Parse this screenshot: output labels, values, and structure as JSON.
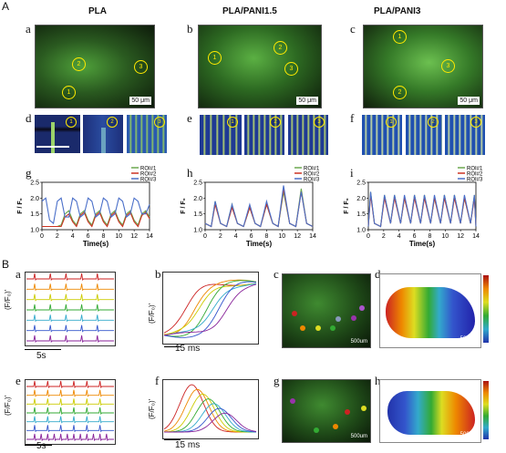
{
  "panel_A": {
    "label": "A",
    "conditions": [
      "PLA",
      "PLA/PANI1.5",
      "PLA/PANI3"
    ],
    "image_labels": [
      "a",
      "b",
      "c"
    ],
    "kymo_labels": [
      "d",
      "e",
      "f"
    ],
    "trace_labels": [
      "g",
      "h",
      "i"
    ],
    "scale_bar": "50 μm",
    "roi_marks": [
      "1",
      "2",
      "3"
    ],
    "legend": [
      "ROI#1",
      "ROI#2",
      "ROI#3"
    ],
    "ylabel": "F / F₀",
    "xlabel": "Time(s)"
  },
  "panel_B": {
    "label": "B",
    "labels": [
      "a",
      "b",
      "c",
      "d",
      "e",
      "f",
      "g",
      "h"
    ],
    "ylabel": "(F/F₀)'",
    "scale_5s": "5s",
    "scale_15ms": "15 ms",
    "scale_500": "500um"
  },
  "colors": {
    "roi1": "#6aa84f",
    "roi2": "#cc3322",
    "roi3": "#4a6fc9",
    "rainbow": [
      "#cc2222",
      "#ee8800",
      "#cccc00",
      "#33aa33",
      "#33aacc",
      "#3355cc",
      "#882299"
    ]
  },
  "chart_data": [
    {
      "type": "line",
      "id": "A-g",
      "xlabel": "Time(s)",
      "ylabel": "F / F₀",
      "xlim": [
        0,
        14
      ],
      "ylim": [
        1.0,
        2.5
      ],
      "xticks": [
        0,
        2,
        4,
        6,
        8,
        10,
        12,
        14
      ],
      "yticks": [
        1.0,
        1.5,
        2.0,
        2.5
      ],
      "series": [
        {
          "name": "ROI#1",
          "x": [
            0,
            0.5,
            1,
            1.5,
            2,
            2.5,
            3,
            3.5,
            4,
            4.5,
            5,
            5.5,
            6,
            6.5,
            7,
            7.5,
            8,
            8.5,
            9,
            9.5,
            10,
            10.5,
            11,
            11.5,
            12,
            12.5,
            13,
            13.5,
            14
          ],
          "y": [
            1.1,
            1.1,
            1.1,
            1.1,
            1.1,
            1.15,
            1.5,
            1.6,
            1.3,
            1.15,
            1.5,
            1.6,
            1.3,
            1.15,
            1.5,
            1.6,
            1.3,
            1.15,
            1.5,
            1.6,
            1.3,
            1.15,
            1.5,
            1.6,
            1.3,
            1.15,
            1.5,
            1.6,
            1.4
          ]
        },
        {
          "name": "ROI#2",
          "x": [
            0,
            0.5,
            1,
            1.5,
            2,
            2.5,
            3,
            3.5,
            4,
            4.5,
            5,
            5.5,
            6,
            6.5,
            7,
            7.5,
            8,
            8.5,
            9,
            9.5,
            10,
            10.5,
            11,
            11.5,
            12,
            12.5,
            13,
            13.5,
            14
          ],
          "y": [
            1.1,
            1.1,
            1.1,
            1.1,
            1.1,
            1.1,
            1.4,
            1.5,
            1.25,
            1.1,
            1.45,
            1.55,
            1.25,
            1.1,
            1.45,
            1.55,
            1.25,
            1.1,
            1.45,
            1.55,
            1.25,
            1.1,
            1.45,
            1.55,
            1.25,
            1.1,
            1.45,
            1.55,
            1.35
          ]
        },
        {
          "name": "ROI#3",
          "x": [
            0,
            0.5,
            1,
            1.5,
            2,
            2.5,
            3,
            3.5,
            4,
            4.5,
            5,
            5.5,
            6,
            6.5,
            7,
            7.5,
            8,
            8.5,
            9,
            9.5,
            10,
            10.5,
            11,
            11.5,
            12,
            12.5,
            13,
            13.5,
            14
          ],
          "y": [
            1.9,
            2.0,
            1.3,
            1.2,
            1.9,
            2.0,
            1.4,
            1.4,
            2.0,
            1.9,
            1.4,
            1.5,
            2.0,
            1.9,
            1.4,
            1.5,
            2.0,
            1.9,
            1.4,
            1.5,
            2.0,
            1.9,
            1.4,
            1.5,
            2.0,
            1.9,
            1.5,
            1.5,
            1.8
          ]
        }
      ]
    },
    {
      "type": "line",
      "id": "A-h",
      "xlabel": "Time(s)",
      "ylabel": "F / F₀",
      "xlim": [
        0,
        14
      ],
      "ylim": [
        1.0,
        2.5
      ],
      "xticks": [
        0,
        2,
        4,
        6,
        8,
        10,
        12,
        14
      ],
      "yticks": [
        1.0,
        1.5,
        2.0,
        2.5
      ],
      "series": [
        {
          "name": "ROI#1",
          "x": [
            0,
            0.8,
            1.3,
            2,
            2.8,
            3.5,
            4.2,
            5,
            5.8,
            6.5,
            7.2,
            8,
            8.8,
            9.5,
            10.2,
            11,
            11.8,
            12.5,
            13.2,
            14
          ],
          "y": [
            1.2,
            1.1,
            1.9,
            1.2,
            1.1,
            1.8,
            1.2,
            1.1,
            1.7,
            1.2,
            1.1,
            1.8,
            1.2,
            1.1,
            2.2,
            1.2,
            1.1,
            2.3,
            1.2,
            1.1
          ]
        },
        {
          "name": "ROI#2",
          "x": [
            0,
            0.8,
            1.3,
            2,
            2.8,
            3.5,
            4.2,
            5,
            5.8,
            6.5,
            7.2,
            8,
            8.8,
            9.5,
            10.2,
            11,
            11.8,
            12.5,
            13.2,
            14
          ],
          "y": [
            1.2,
            1.1,
            1.8,
            1.2,
            1.1,
            1.7,
            1.2,
            1.1,
            1.7,
            1.2,
            1.1,
            1.8,
            1.2,
            1.1,
            2.3,
            1.2,
            1.1,
            2.2,
            1.2,
            1.1
          ]
        },
        {
          "name": "ROI#3",
          "x": [
            0,
            0.8,
            1.3,
            2,
            2.8,
            3.5,
            4.2,
            5,
            5.8,
            6.5,
            7.2,
            8,
            8.8,
            9.5,
            10.2,
            11,
            11.8,
            12.5,
            13.2,
            14
          ],
          "y": [
            1.2,
            1.1,
            1.9,
            1.2,
            1.1,
            1.8,
            1.2,
            1.1,
            1.8,
            1.2,
            1.1,
            1.9,
            1.2,
            1.1,
            2.4,
            1.2,
            1.1,
            2.2,
            1.2,
            1.1
          ]
        }
      ]
    },
    {
      "type": "line",
      "id": "A-i",
      "xlabel": "Time(s)",
      "ylabel": "F / F₀",
      "xlim": [
        0,
        14
      ],
      "ylim": [
        1.0,
        2.5
      ],
      "xticks": [
        0,
        2,
        4,
        6,
        8,
        10,
        12,
        14
      ],
      "yticks": [
        1.0,
        1.5,
        2.0,
        2.5
      ],
      "series": [
        {
          "name": "ROI#1",
          "x": [
            0,
            0.3,
            0.8,
            1.6,
            2.1,
            2.9,
            3.4,
            4.2,
            4.7,
            5.5,
            6.0,
            6.8,
            7.3,
            8.1,
            8.6,
            9.4,
            9.9,
            10.7,
            11.2,
            12.0,
            12.5,
            13.3,
            13.8,
            14
          ],
          "y": [
            1.1,
            2.2,
            1.2,
            1.1,
            2.1,
            1.2,
            2.1,
            1.2,
            2.0,
            1.2,
            2.1,
            1.2,
            2.1,
            1.2,
            2.0,
            1.2,
            2.1,
            1.2,
            2.1,
            1.2,
            2.0,
            1.2,
            2.1,
            1.1
          ]
        },
        {
          "name": "ROI#2",
          "x": [
            0,
            0.3,
            0.8,
            1.6,
            2.1,
            2.9,
            3.4,
            4.2,
            4.7,
            5.5,
            6.0,
            6.8,
            7.3,
            8.1,
            8.6,
            9.4,
            9.9,
            10.7,
            11.2,
            12.0,
            12.5,
            13.3,
            13.8,
            14
          ],
          "y": [
            1.1,
            2.1,
            1.2,
            1.1,
            2.0,
            1.2,
            2.0,
            1.2,
            2.0,
            1.2,
            2.0,
            1.2,
            2.0,
            1.2,
            2.0,
            1.2,
            2.0,
            1.2,
            2.0,
            1.2,
            2.0,
            1.2,
            2.0,
            1.1
          ]
        },
        {
          "name": "ROI#3",
          "x": [
            0,
            0.3,
            0.8,
            1.6,
            2.1,
            2.9,
            3.4,
            4.2,
            4.7,
            5.5,
            6.0,
            6.8,
            7.3,
            8.1,
            8.6,
            9.4,
            9.9,
            10.7,
            11.2,
            12.0,
            12.5,
            13.3,
            13.8,
            14
          ],
          "y": [
            1.1,
            2.2,
            1.2,
            1.1,
            2.1,
            1.2,
            2.1,
            1.2,
            2.1,
            1.2,
            2.1,
            1.2,
            2.1,
            1.2,
            2.1,
            1.2,
            2.1,
            1.2,
            2.1,
            1.2,
            2.1,
            1.2,
            2.1,
            1.1
          ]
        }
      ]
    }
  ]
}
